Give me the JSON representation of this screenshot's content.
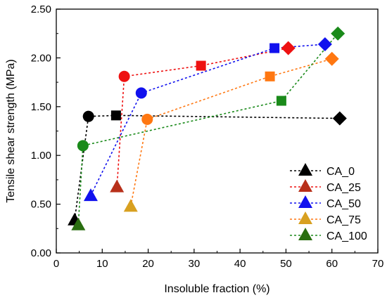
{
  "chart_data": {
    "type": "scatter",
    "xlabel": "Insoluble fraction (%)",
    "ylabel": "Tensile shear strength (MPa)",
    "xlim": [
      0,
      70
    ],
    "ylim": [
      0,
      2.5
    ],
    "x_ticks": [
      "0",
      "10",
      "20",
      "30",
      "40",
      "50",
      "60",
      "70"
    ],
    "y_ticks": [
      "0.00",
      "0.50",
      "1.00",
      "1.50",
      "2.00",
      "2.50"
    ],
    "grid": false,
    "legend_position": "bottom-right",
    "marker_legend": "triangle",
    "series": [
      {
        "name": "CA_0",
        "color": "#000000",
        "points": [
          {
            "x": 4.0,
            "y": 0.34,
            "marker": "triangle"
          },
          {
            "x": 7.0,
            "y": 1.4,
            "marker": "circle"
          },
          {
            "x": 13.0,
            "y": 1.41,
            "marker": "square"
          },
          {
            "x": 61.7,
            "y": 1.38,
            "marker": "diamond"
          }
        ]
      },
      {
        "name": "CA_25",
        "color": "#ee1111",
        "marker_color": "#b8301a",
        "points": [
          {
            "x": 13.2,
            "y": 0.68,
            "marker": "triangle"
          },
          {
            "x": 14.8,
            "y": 1.81,
            "marker": "circle"
          },
          {
            "x": 31.5,
            "y": 1.92,
            "marker": "square"
          },
          {
            "x": 50.5,
            "y": 2.1,
            "marker": "diamond"
          }
        ]
      },
      {
        "name": "CA_50",
        "color": "#1111ee",
        "points": [
          {
            "x": 7.5,
            "y": 0.59,
            "marker": "triangle"
          },
          {
            "x": 18.5,
            "y": 1.64,
            "marker": "circle"
          },
          {
            "x": 47.5,
            "y": 2.1,
            "marker": "square"
          },
          {
            "x": 58.5,
            "y": 2.14,
            "marker": "diamond"
          }
        ]
      },
      {
        "name": "CA_75",
        "color": "#ff7711",
        "marker_color": "#d8a020",
        "points": [
          {
            "x": 16.2,
            "y": 0.48,
            "marker": "triangle"
          },
          {
            "x": 19.8,
            "y": 1.37,
            "marker": "circle"
          },
          {
            "x": 46.5,
            "y": 1.81,
            "marker": "square"
          },
          {
            "x": 60.0,
            "y": 1.99,
            "marker": "diamond"
          }
        ]
      },
      {
        "name": "CA_100",
        "color": "#1a8a1a",
        "marker_color": "#2a6e10",
        "points": [
          {
            "x": 4.8,
            "y": 0.29,
            "marker": "triangle"
          },
          {
            "x": 5.8,
            "y": 1.1,
            "marker": "circle"
          },
          {
            "x": 49.0,
            "y": 1.56,
            "marker": "square"
          },
          {
            "x": 61.3,
            "y": 2.25,
            "marker": "diamond"
          }
        ]
      }
    ]
  }
}
